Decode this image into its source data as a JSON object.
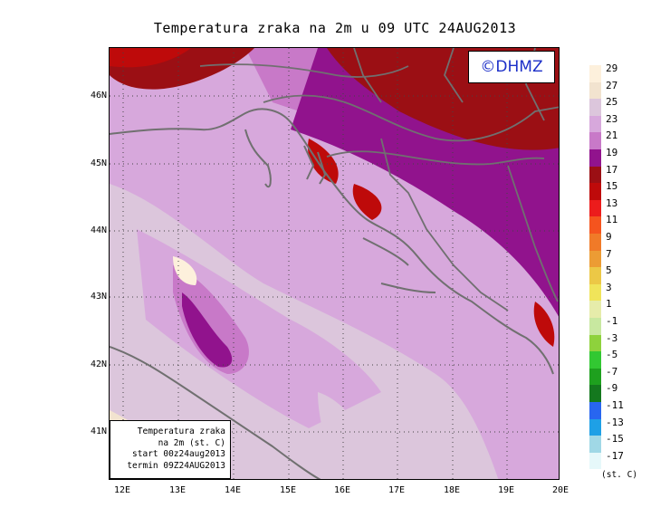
{
  "title": "Temperatura zraka na 2m u 09 UTC 24AUG2013",
  "copyright": "©DHMZ",
  "info_box": {
    "lines": [
      "Temperatura zraka",
      "na 2m (st. C)",
      "start 00z24aug2013",
      "termin 09Z24AUG2013"
    ]
  },
  "axes": {
    "lat_labels": [
      "46N",
      "45N",
      "44N",
      "43N",
      "42N",
      "41N"
    ],
    "lon_labels": [
      "12E",
      "13E",
      "14E",
      "15E",
      "16E",
      "17E",
      "18E",
      "19E",
      "20E"
    ]
  },
  "legend": {
    "unit": "(st. C)",
    "labels": [
      "29",
      "27",
      "25",
      "23",
      "21",
      "19",
      "17",
      "15",
      "13",
      "11",
      "9",
      "7",
      "5",
      "3",
      "1",
      "-1",
      "-3",
      "-5",
      "-7",
      "-9",
      "-11",
      "-13",
      "-15",
      "-17"
    ],
    "colors": [
      "#fdf0dc",
      "#f2e3cf",
      "#dcc6dc",
      "#d7a8dc",
      "#c879c8",
      "#91138d",
      "#9b0f14",
      "#be0a0a",
      "#ec1c1c",
      "#f5541e",
      "#f07a28",
      "#ec9c34",
      "#ecc846",
      "#f0e45a",
      "#e6ecaa",
      "#c8e8a0",
      "#8ed23c",
      "#32c832",
      "#1ea01e",
      "#14781e",
      "#2866f0",
      "#1ea0e6",
      "#a0d8e6",
      "#e6f8fa"
    ]
  }
}
